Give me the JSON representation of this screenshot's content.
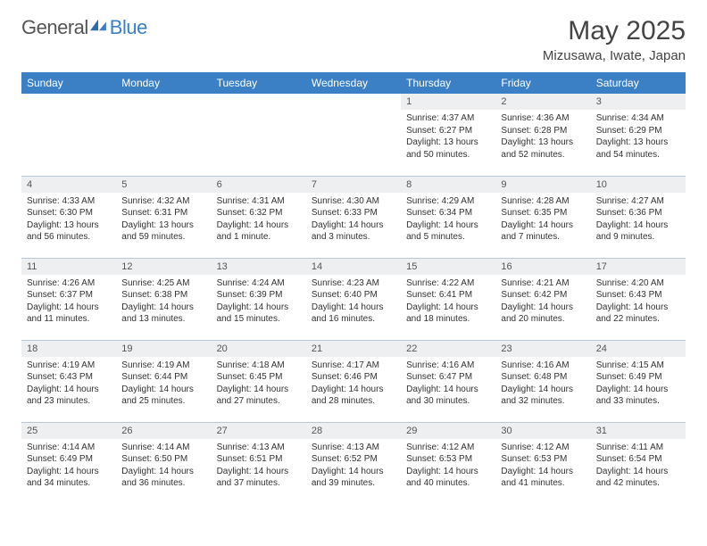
{
  "brand": {
    "name1": "General",
    "name2": "Blue"
  },
  "title": "May 2025",
  "location": "Mizusawa, Iwate, Japan",
  "colors": {
    "header_bg": "#3b7fc4",
    "header_text": "#ffffff",
    "daynum_bg": "#edeff1",
    "border": "#b8c9dc",
    "text": "#333333",
    "title": "#444444"
  },
  "weekdays": [
    "Sunday",
    "Monday",
    "Tuesday",
    "Wednesday",
    "Thursday",
    "Friday",
    "Saturday"
  ],
  "weeks": [
    [
      null,
      null,
      null,
      null,
      {
        "n": "1",
        "sunrise": "4:37 AM",
        "sunset": "6:27 PM",
        "daylight": "13 hours and 50 minutes."
      },
      {
        "n": "2",
        "sunrise": "4:36 AM",
        "sunset": "6:28 PM",
        "daylight": "13 hours and 52 minutes."
      },
      {
        "n": "3",
        "sunrise": "4:34 AM",
        "sunset": "6:29 PM",
        "daylight": "13 hours and 54 minutes."
      }
    ],
    [
      {
        "n": "4",
        "sunrise": "4:33 AM",
        "sunset": "6:30 PM",
        "daylight": "13 hours and 56 minutes."
      },
      {
        "n": "5",
        "sunrise": "4:32 AM",
        "sunset": "6:31 PM",
        "daylight": "13 hours and 59 minutes."
      },
      {
        "n": "6",
        "sunrise": "4:31 AM",
        "sunset": "6:32 PM",
        "daylight": "14 hours and 1 minute."
      },
      {
        "n": "7",
        "sunrise": "4:30 AM",
        "sunset": "6:33 PM",
        "daylight": "14 hours and 3 minutes."
      },
      {
        "n": "8",
        "sunrise": "4:29 AM",
        "sunset": "6:34 PM",
        "daylight": "14 hours and 5 minutes."
      },
      {
        "n": "9",
        "sunrise": "4:28 AM",
        "sunset": "6:35 PM",
        "daylight": "14 hours and 7 minutes."
      },
      {
        "n": "10",
        "sunrise": "4:27 AM",
        "sunset": "6:36 PM",
        "daylight": "14 hours and 9 minutes."
      }
    ],
    [
      {
        "n": "11",
        "sunrise": "4:26 AM",
        "sunset": "6:37 PM",
        "daylight": "14 hours and 11 minutes."
      },
      {
        "n": "12",
        "sunrise": "4:25 AM",
        "sunset": "6:38 PM",
        "daylight": "14 hours and 13 minutes."
      },
      {
        "n": "13",
        "sunrise": "4:24 AM",
        "sunset": "6:39 PM",
        "daylight": "14 hours and 15 minutes."
      },
      {
        "n": "14",
        "sunrise": "4:23 AM",
        "sunset": "6:40 PM",
        "daylight": "14 hours and 16 minutes."
      },
      {
        "n": "15",
        "sunrise": "4:22 AM",
        "sunset": "6:41 PM",
        "daylight": "14 hours and 18 minutes."
      },
      {
        "n": "16",
        "sunrise": "4:21 AM",
        "sunset": "6:42 PM",
        "daylight": "14 hours and 20 minutes."
      },
      {
        "n": "17",
        "sunrise": "4:20 AM",
        "sunset": "6:43 PM",
        "daylight": "14 hours and 22 minutes."
      }
    ],
    [
      {
        "n": "18",
        "sunrise": "4:19 AM",
        "sunset": "6:43 PM",
        "daylight": "14 hours and 23 minutes."
      },
      {
        "n": "19",
        "sunrise": "4:19 AM",
        "sunset": "6:44 PM",
        "daylight": "14 hours and 25 minutes."
      },
      {
        "n": "20",
        "sunrise": "4:18 AM",
        "sunset": "6:45 PM",
        "daylight": "14 hours and 27 minutes."
      },
      {
        "n": "21",
        "sunrise": "4:17 AM",
        "sunset": "6:46 PM",
        "daylight": "14 hours and 28 minutes."
      },
      {
        "n": "22",
        "sunrise": "4:16 AM",
        "sunset": "6:47 PM",
        "daylight": "14 hours and 30 minutes."
      },
      {
        "n": "23",
        "sunrise": "4:16 AM",
        "sunset": "6:48 PM",
        "daylight": "14 hours and 32 minutes."
      },
      {
        "n": "24",
        "sunrise": "4:15 AM",
        "sunset": "6:49 PM",
        "daylight": "14 hours and 33 minutes."
      }
    ],
    [
      {
        "n": "25",
        "sunrise": "4:14 AM",
        "sunset": "6:49 PM",
        "daylight": "14 hours and 34 minutes."
      },
      {
        "n": "26",
        "sunrise": "4:14 AM",
        "sunset": "6:50 PM",
        "daylight": "14 hours and 36 minutes."
      },
      {
        "n": "27",
        "sunrise": "4:13 AM",
        "sunset": "6:51 PM",
        "daylight": "14 hours and 37 minutes."
      },
      {
        "n": "28",
        "sunrise": "4:13 AM",
        "sunset": "6:52 PM",
        "daylight": "14 hours and 39 minutes."
      },
      {
        "n": "29",
        "sunrise": "4:12 AM",
        "sunset": "6:53 PM",
        "daylight": "14 hours and 40 minutes."
      },
      {
        "n": "30",
        "sunrise": "4:12 AM",
        "sunset": "6:53 PM",
        "daylight": "14 hours and 41 minutes."
      },
      {
        "n": "31",
        "sunrise": "4:11 AM",
        "sunset": "6:54 PM",
        "daylight": "14 hours and 42 minutes."
      }
    ]
  ],
  "labels": {
    "sunrise": "Sunrise:",
    "sunset": "Sunset:",
    "daylight": "Daylight:"
  }
}
